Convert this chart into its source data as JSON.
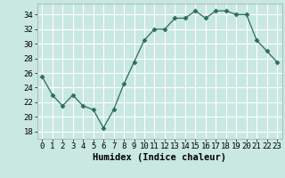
{
  "x": [
    0,
    1,
    2,
    3,
    4,
    5,
    6,
    7,
    8,
    9,
    10,
    11,
    12,
    13,
    14,
    15,
    16,
    17,
    18,
    19,
    20,
    21,
    22,
    23
  ],
  "y": [
    25.5,
    23.0,
    21.5,
    23.0,
    21.5,
    21.0,
    18.5,
    21.0,
    24.5,
    27.5,
    30.5,
    32.0,
    32.0,
    33.5,
    33.5,
    34.5,
    33.5,
    34.5,
    34.5,
    34.0,
    34.0,
    30.5,
    29.0,
    27.5
  ],
  "xlabel": "Humidex (Indice chaleur)",
  "ylim": [
    17,
    35.5
  ],
  "yticks": [
    18,
    20,
    22,
    24,
    26,
    28,
    30,
    32,
    34
  ],
  "xticks": [
    0,
    1,
    2,
    3,
    4,
    5,
    6,
    7,
    8,
    9,
    10,
    11,
    12,
    13,
    14,
    15,
    16,
    17,
    18,
    19,
    20,
    21,
    22,
    23
  ],
  "line_color": "#2e6b5e",
  "marker": "D",
  "marker_size": 2.5,
  "bg_color": "#c8e8e0",
  "grid_color": "#ffffff",
  "tick_fontsize": 6.5,
  "xlabel_fontsize": 7.5
}
